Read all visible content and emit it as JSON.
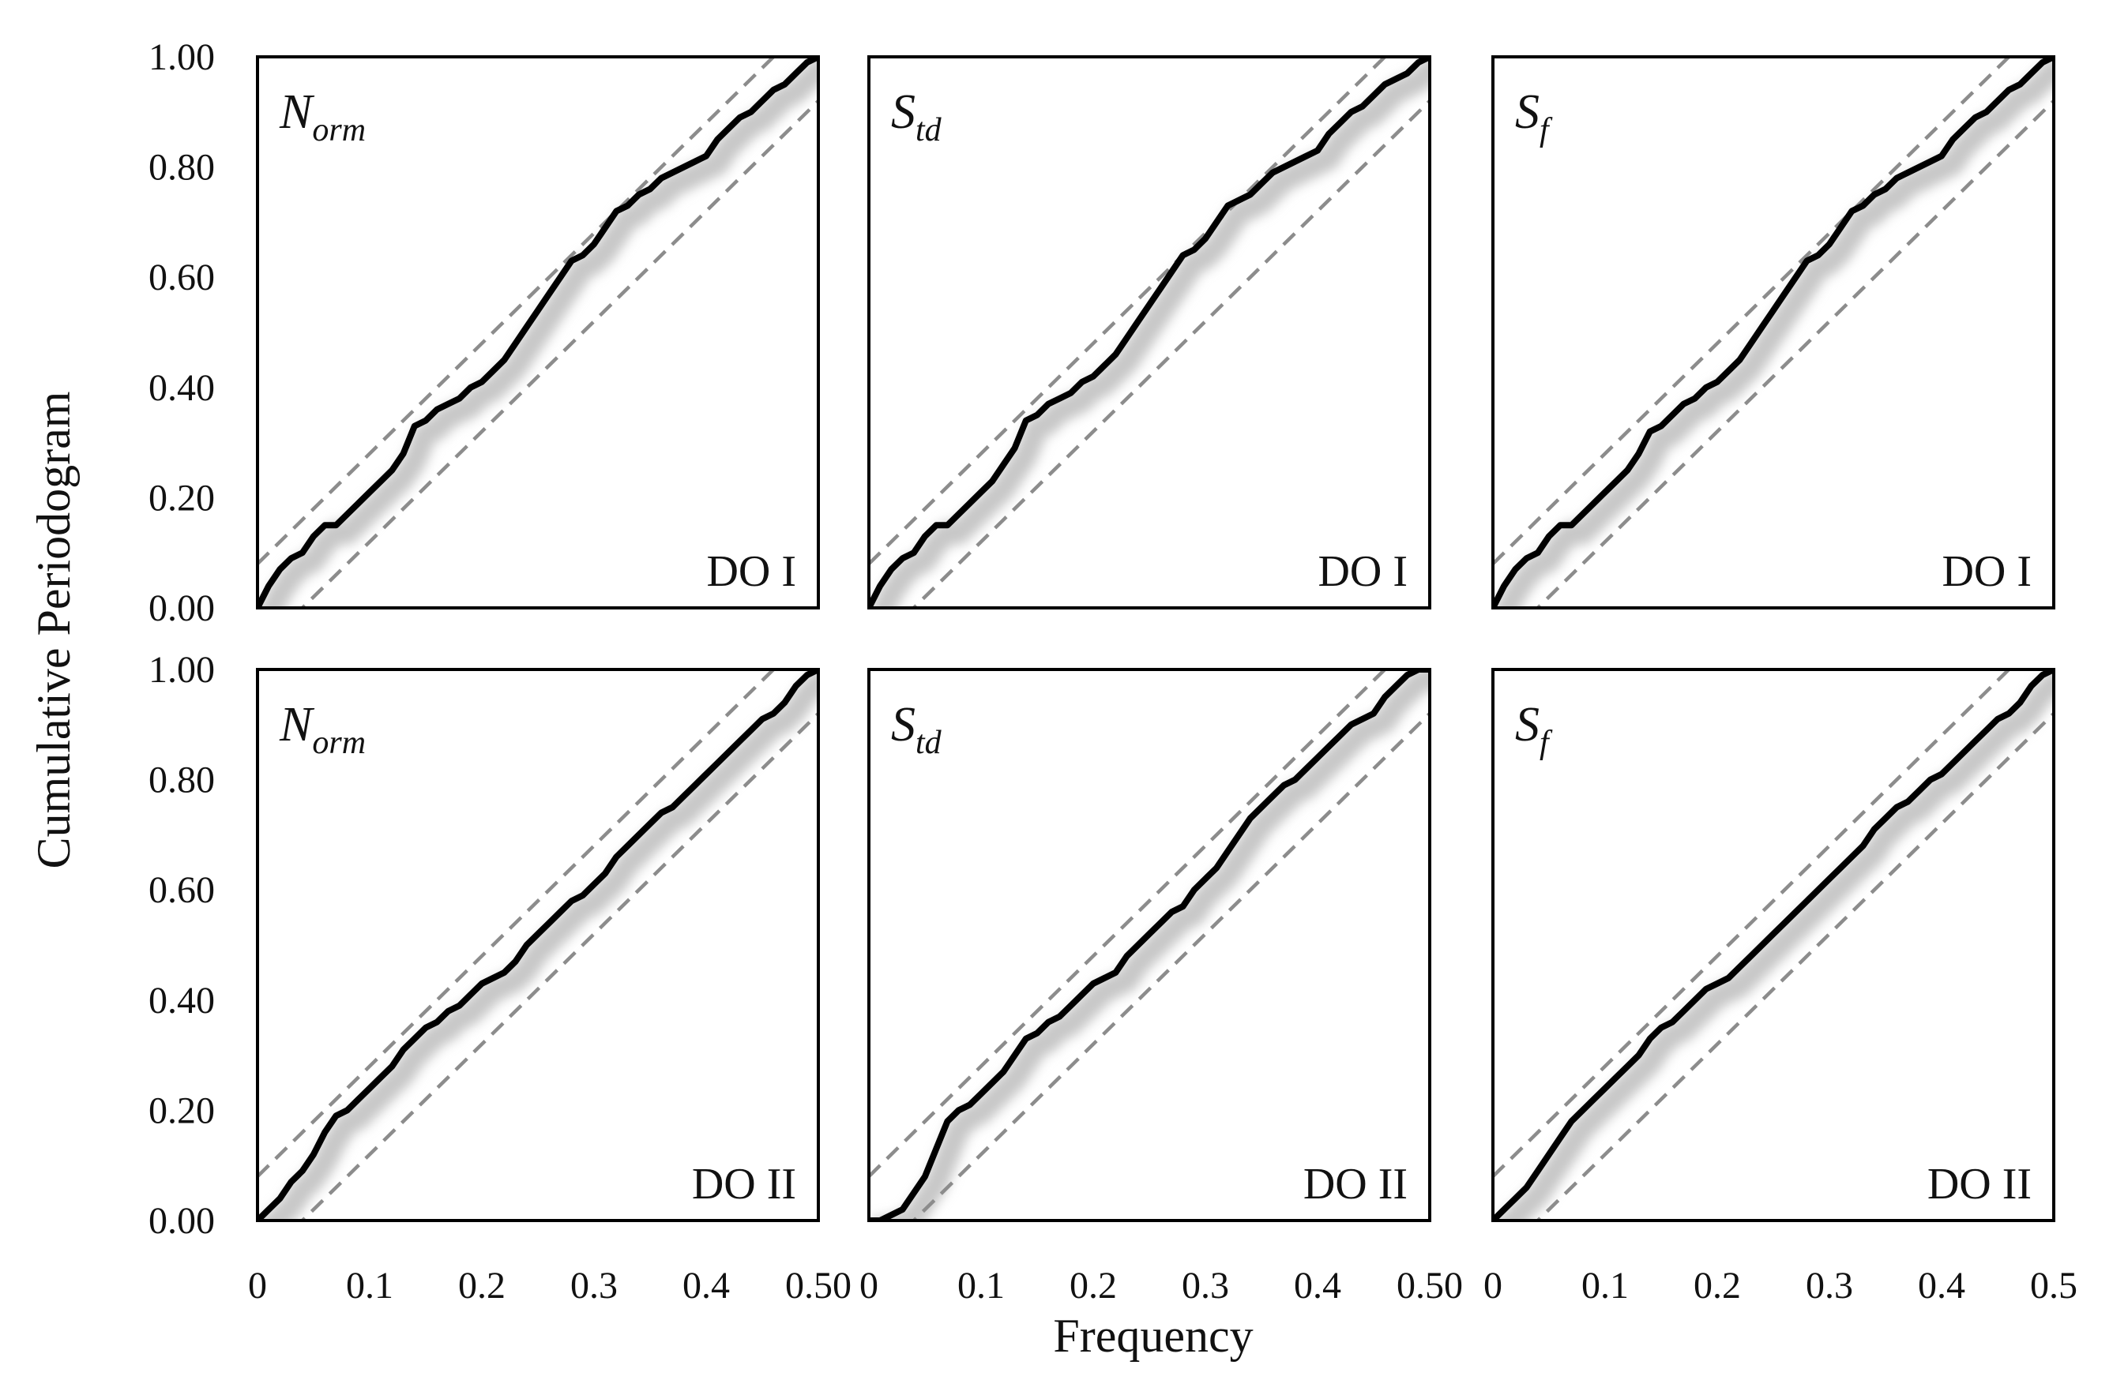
{
  "chart_data": {
    "type": "line",
    "ylabel": "Cumulative Periodogram",
    "xlabel": "Frequency",
    "xlim": [
      0,
      0.5
    ],
    "ylim": [
      0,
      1
    ],
    "x_ticks": [
      "0",
      "0.1",
      "0.2",
      "0.3",
      "0.4",
      "0.5"
    ],
    "x_ticks_first_two_panels_last_label": "0.50",
    "y_ticks": [
      "0.00",
      "0.20",
      "0.40",
      "0.60",
      "0.80",
      "1.00"
    ],
    "line_colors": {
      "periodogram": "#000000",
      "bounds": "#8c8c8c",
      "shadow": "#c8c8c8"
    },
    "bound_offset": 0.08,
    "panels": [
      {
        "row": 0,
        "col": 0,
        "label": {
          "main": "N",
          "sub": "orm"
        },
        "group": "DO I",
        "x": [
          0,
          0.01,
          0.02,
          0.03,
          0.04,
          0.05,
          0.06,
          0.07,
          0.08,
          0.09,
          0.1,
          0.11,
          0.12,
          0.13,
          0.14,
          0.15,
          0.16,
          0.17,
          0.18,
          0.19,
          0.2,
          0.21,
          0.22,
          0.23,
          0.24,
          0.25,
          0.26,
          0.27,
          0.28,
          0.29,
          0.3,
          0.31,
          0.32,
          0.33,
          0.34,
          0.35,
          0.36,
          0.37,
          0.38,
          0.39,
          0.4,
          0.41,
          0.42,
          0.43,
          0.44,
          0.45,
          0.46,
          0.47,
          0.48,
          0.49,
          0.5
        ],
        "y": [
          0,
          0.04,
          0.07,
          0.09,
          0.1,
          0.13,
          0.15,
          0.15,
          0.17,
          0.19,
          0.21,
          0.23,
          0.25,
          0.28,
          0.33,
          0.34,
          0.36,
          0.37,
          0.38,
          0.4,
          0.41,
          0.43,
          0.45,
          0.48,
          0.51,
          0.54,
          0.57,
          0.6,
          0.63,
          0.64,
          0.66,
          0.69,
          0.72,
          0.73,
          0.75,
          0.76,
          0.78,
          0.79,
          0.8,
          0.81,
          0.82,
          0.85,
          0.87,
          0.89,
          0.9,
          0.92,
          0.94,
          0.95,
          0.97,
          0.99,
          1.0
        ]
      },
      {
        "row": 0,
        "col": 1,
        "label": {
          "main": "S",
          "sub": "td"
        },
        "group": "DO I",
        "x": [
          0,
          0.01,
          0.02,
          0.03,
          0.04,
          0.05,
          0.06,
          0.07,
          0.08,
          0.09,
          0.1,
          0.11,
          0.12,
          0.13,
          0.14,
          0.15,
          0.16,
          0.17,
          0.18,
          0.19,
          0.2,
          0.21,
          0.22,
          0.23,
          0.24,
          0.25,
          0.26,
          0.27,
          0.28,
          0.29,
          0.3,
          0.31,
          0.32,
          0.33,
          0.34,
          0.35,
          0.36,
          0.37,
          0.38,
          0.39,
          0.4,
          0.41,
          0.42,
          0.43,
          0.44,
          0.45,
          0.46,
          0.47,
          0.48,
          0.49,
          0.5
        ],
        "y": [
          0,
          0.04,
          0.07,
          0.09,
          0.1,
          0.13,
          0.15,
          0.15,
          0.17,
          0.19,
          0.21,
          0.23,
          0.26,
          0.29,
          0.34,
          0.35,
          0.37,
          0.38,
          0.39,
          0.41,
          0.42,
          0.44,
          0.46,
          0.49,
          0.52,
          0.55,
          0.58,
          0.61,
          0.64,
          0.65,
          0.67,
          0.7,
          0.73,
          0.74,
          0.75,
          0.77,
          0.79,
          0.8,
          0.81,
          0.82,
          0.83,
          0.86,
          0.88,
          0.9,
          0.91,
          0.93,
          0.95,
          0.96,
          0.97,
          0.99,
          1.0
        ]
      },
      {
        "row": 0,
        "col": 2,
        "label": {
          "main": "S",
          "sub": "f"
        },
        "group": "DO I",
        "x": [
          0,
          0.01,
          0.02,
          0.03,
          0.04,
          0.05,
          0.06,
          0.07,
          0.08,
          0.09,
          0.1,
          0.11,
          0.12,
          0.13,
          0.14,
          0.15,
          0.16,
          0.17,
          0.18,
          0.19,
          0.2,
          0.21,
          0.22,
          0.23,
          0.24,
          0.25,
          0.26,
          0.27,
          0.28,
          0.29,
          0.3,
          0.31,
          0.32,
          0.33,
          0.34,
          0.35,
          0.36,
          0.37,
          0.38,
          0.39,
          0.4,
          0.41,
          0.42,
          0.43,
          0.44,
          0.45,
          0.46,
          0.47,
          0.48,
          0.49,
          0.5
        ],
        "y": [
          0,
          0.04,
          0.07,
          0.09,
          0.1,
          0.13,
          0.15,
          0.15,
          0.17,
          0.19,
          0.21,
          0.23,
          0.25,
          0.28,
          0.32,
          0.33,
          0.35,
          0.37,
          0.38,
          0.4,
          0.41,
          0.43,
          0.45,
          0.48,
          0.51,
          0.54,
          0.57,
          0.6,
          0.63,
          0.64,
          0.66,
          0.69,
          0.72,
          0.73,
          0.75,
          0.76,
          0.78,
          0.79,
          0.8,
          0.81,
          0.82,
          0.85,
          0.87,
          0.89,
          0.9,
          0.92,
          0.94,
          0.95,
          0.97,
          0.99,
          1.0
        ]
      },
      {
        "row": 1,
        "col": 0,
        "label": {
          "main": "N",
          "sub": "orm"
        },
        "group": "DO II",
        "x": [
          0,
          0.01,
          0.02,
          0.03,
          0.04,
          0.05,
          0.06,
          0.07,
          0.08,
          0.09,
          0.1,
          0.11,
          0.12,
          0.13,
          0.14,
          0.15,
          0.16,
          0.17,
          0.18,
          0.19,
          0.2,
          0.21,
          0.22,
          0.23,
          0.24,
          0.25,
          0.26,
          0.27,
          0.28,
          0.29,
          0.3,
          0.31,
          0.32,
          0.33,
          0.34,
          0.35,
          0.36,
          0.37,
          0.38,
          0.39,
          0.4,
          0.41,
          0.42,
          0.43,
          0.44,
          0.45,
          0.46,
          0.47,
          0.48,
          0.49,
          0.5
        ],
        "y": [
          0,
          0.02,
          0.04,
          0.07,
          0.09,
          0.12,
          0.16,
          0.19,
          0.2,
          0.22,
          0.24,
          0.26,
          0.28,
          0.31,
          0.33,
          0.35,
          0.36,
          0.38,
          0.39,
          0.41,
          0.43,
          0.44,
          0.45,
          0.47,
          0.5,
          0.52,
          0.54,
          0.56,
          0.58,
          0.59,
          0.61,
          0.63,
          0.66,
          0.68,
          0.7,
          0.72,
          0.74,
          0.75,
          0.77,
          0.79,
          0.81,
          0.83,
          0.85,
          0.87,
          0.89,
          0.91,
          0.92,
          0.94,
          0.97,
          0.99,
          1.0
        ]
      },
      {
        "row": 1,
        "col": 1,
        "label": {
          "main": "S",
          "sub": "td"
        },
        "group": "DO II",
        "x": [
          0,
          0.01,
          0.02,
          0.03,
          0.04,
          0.05,
          0.06,
          0.07,
          0.08,
          0.09,
          0.1,
          0.11,
          0.12,
          0.13,
          0.14,
          0.15,
          0.16,
          0.17,
          0.18,
          0.19,
          0.2,
          0.21,
          0.22,
          0.23,
          0.24,
          0.25,
          0.26,
          0.27,
          0.28,
          0.29,
          0.3,
          0.31,
          0.32,
          0.33,
          0.34,
          0.35,
          0.36,
          0.37,
          0.38,
          0.39,
          0.4,
          0.41,
          0.42,
          0.43,
          0.44,
          0.45,
          0.46,
          0.47,
          0.48,
          0.49,
          0.5
        ],
        "y": [
          0,
          0.0,
          0.01,
          0.02,
          0.05,
          0.08,
          0.13,
          0.18,
          0.2,
          0.21,
          0.23,
          0.25,
          0.27,
          0.3,
          0.33,
          0.34,
          0.36,
          0.37,
          0.39,
          0.41,
          0.43,
          0.44,
          0.45,
          0.48,
          0.5,
          0.52,
          0.54,
          0.56,
          0.57,
          0.6,
          0.62,
          0.64,
          0.67,
          0.7,
          0.73,
          0.75,
          0.77,
          0.79,
          0.8,
          0.82,
          0.84,
          0.86,
          0.88,
          0.9,
          0.91,
          0.92,
          0.95,
          0.97,
          0.99,
          1.0,
          1.0
        ]
      },
      {
        "row": 1,
        "col": 2,
        "label": {
          "main": "S",
          "sub": "f"
        },
        "group": "DO II",
        "x": [
          0,
          0.01,
          0.02,
          0.03,
          0.04,
          0.05,
          0.06,
          0.07,
          0.08,
          0.09,
          0.1,
          0.11,
          0.12,
          0.13,
          0.14,
          0.15,
          0.16,
          0.17,
          0.18,
          0.19,
          0.2,
          0.21,
          0.22,
          0.23,
          0.24,
          0.25,
          0.26,
          0.27,
          0.28,
          0.29,
          0.3,
          0.31,
          0.32,
          0.33,
          0.34,
          0.35,
          0.36,
          0.37,
          0.38,
          0.39,
          0.4,
          0.41,
          0.42,
          0.43,
          0.44,
          0.45,
          0.46,
          0.47,
          0.48,
          0.49,
          0.5
        ],
        "y": [
          0,
          0.02,
          0.04,
          0.06,
          0.09,
          0.12,
          0.15,
          0.18,
          0.2,
          0.22,
          0.24,
          0.26,
          0.28,
          0.3,
          0.33,
          0.35,
          0.36,
          0.38,
          0.4,
          0.42,
          0.43,
          0.44,
          0.46,
          0.48,
          0.5,
          0.52,
          0.54,
          0.56,
          0.58,
          0.6,
          0.62,
          0.64,
          0.66,
          0.68,
          0.71,
          0.73,
          0.75,
          0.76,
          0.78,
          0.8,
          0.81,
          0.83,
          0.85,
          0.87,
          0.89,
          0.91,
          0.92,
          0.94,
          0.97,
          0.99,
          1.0
        ]
      }
    ]
  }
}
